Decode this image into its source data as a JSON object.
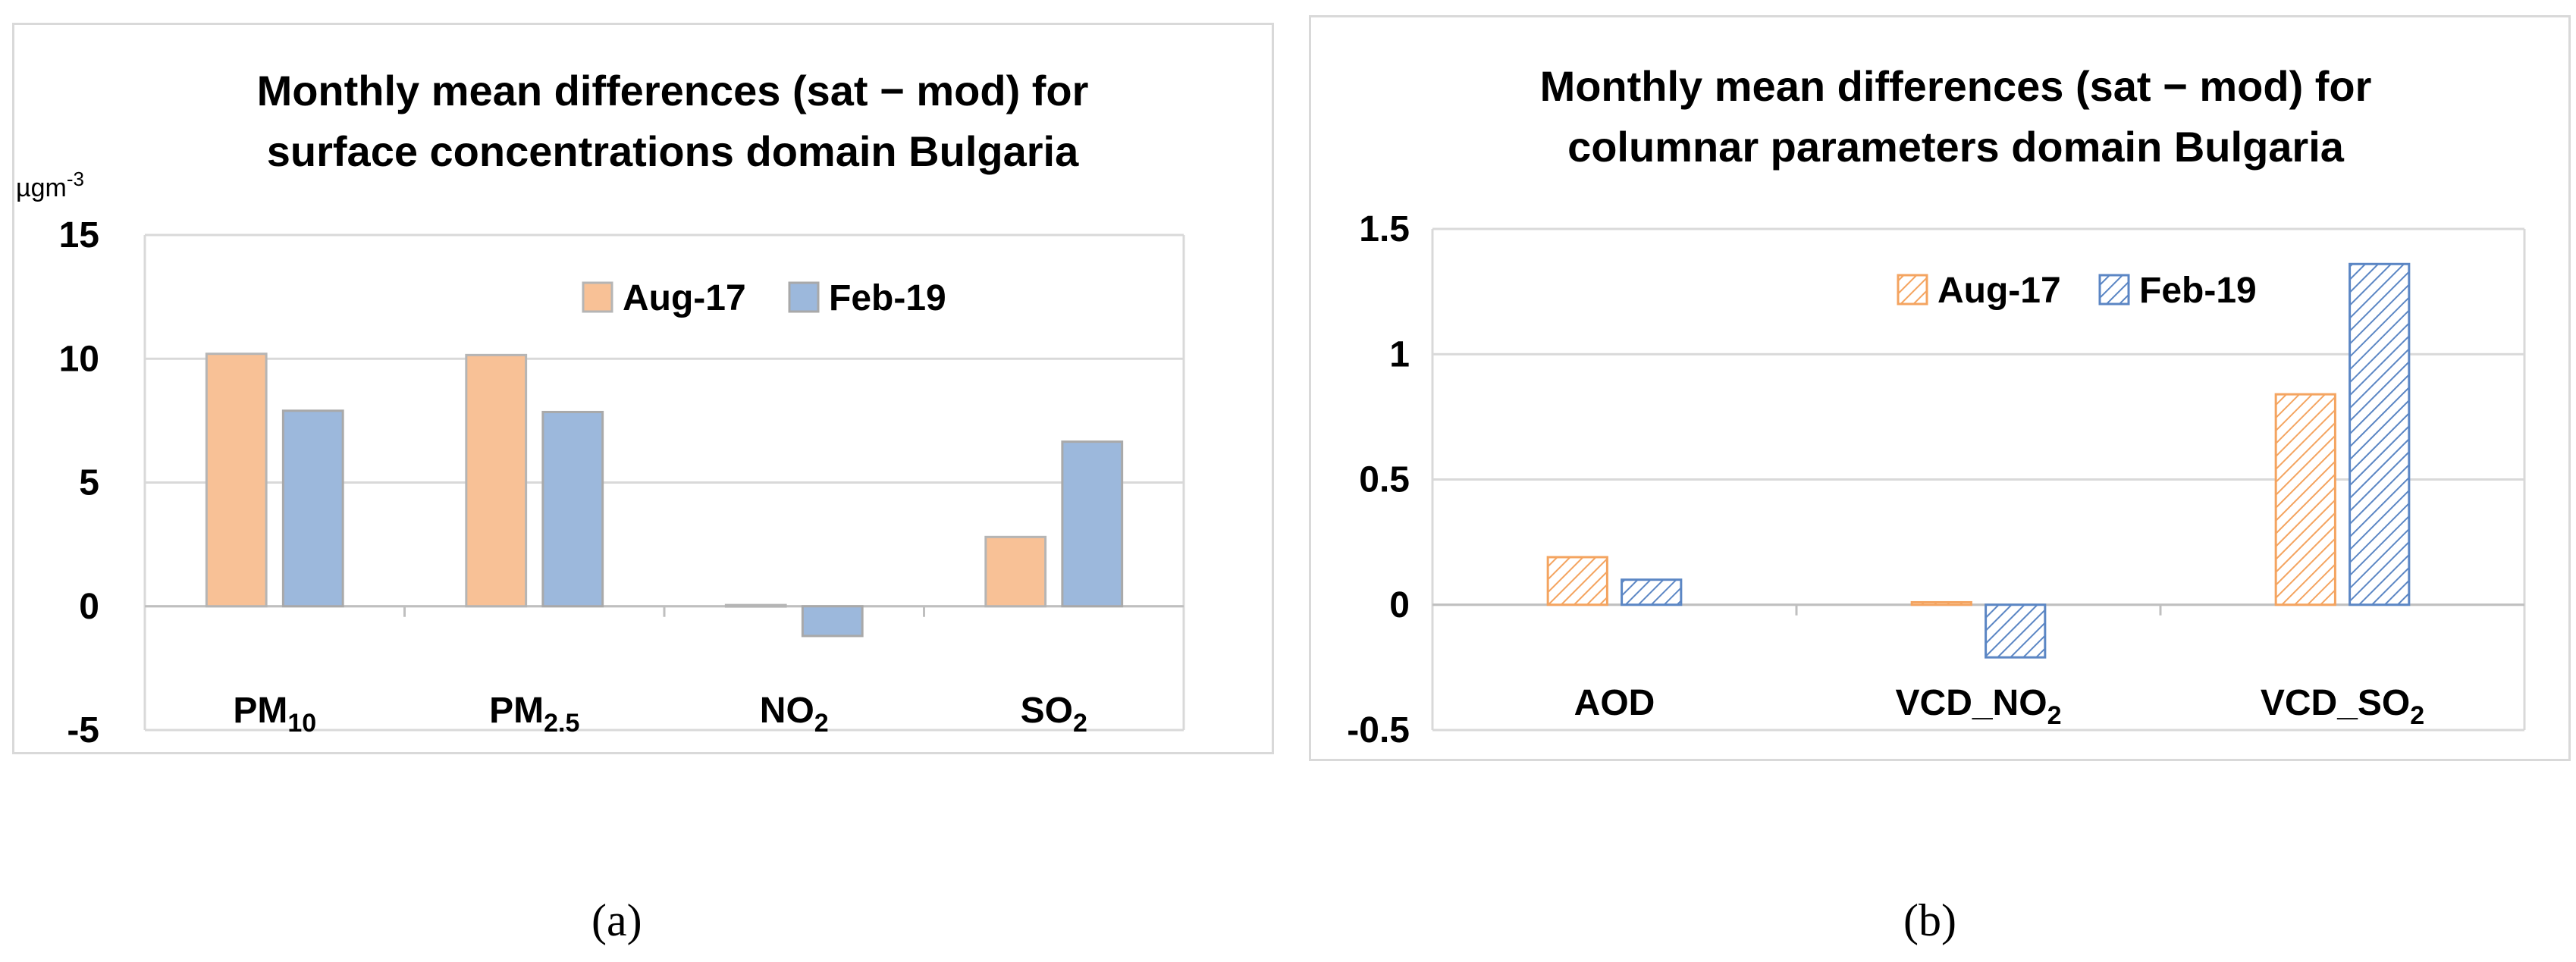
{
  "chart_data": [
    {
      "type": "bar",
      "panel": "(a)",
      "title_lines": [
        "Monthly mean differences (sat − mod) for",
        "surface concentrations domain Bulgaria"
      ],
      "unit": {
        "base": "µgm",
        "sup": "-3"
      },
      "categories": [
        {
          "base": "PM",
          "sub": "10"
        },
        {
          "base": "PM",
          "sub": "2.5"
        },
        {
          "base": "NO",
          "sub": "2"
        },
        {
          "base": "SO",
          "sub": "2"
        }
      ],
      "series": [
        {
          "name": "Aug-17",
          "values": [
            10.2,
            10.15,
            0.05,
            2.8
          ],
          "color": "#f8c196",
          "stroke": "#b5b5b5",
          "pattern": "solid"
        },
        {
          "name": "Feb-19",
          "values": [
            7.9,
            7.85,
            -1.2,
            6.65
          ],
          "color": "#9cb8dc",
          "stroke": "#a9a9a9",
          "pattern": "solid"
        }
      ],
      "ylim": [
        -5,
        15
      ],
      "yticks": [
        -5,
        0,
        5,
        10,
        15
      ],
      "ytick_labels": [
        "-5",
        "0",
        "5",
        "10",
        "15"
      ],
      "grid": true,
      "legend": "top-right"
    },
    {
      "type": "bar",
      "panel": "(b)",
      "title_lines": [
        "Monthly mean differences (sat − mod) for",
        "columnar parameters domain Bulgaria"
      ],
      "categories": [
        {
          "base": "AOD",
          "sub": ""
        },
        {
          "base": "VCD_NO",
          "sub": "2"
        },
        {
          "base": "VCD_SO",
          "sub": "2"
        }
      ],
      "series": [
        {
          "name": "Aug-17",
          "values": [
            0.19,
            0.01,
            0.84
          ],
          "color": "#f4a460",
          "stroke": "#f4a460",
          "pattern": "hatched"
        },
        {
          "name": "Feb-19",
          "values": [
            0.1,
            -0.21,
            1.36
          ],
          "color": "#5b86c4",
          "stroke": "#5b86c4",
          "pattern": "hatched"
        }
      ],
      "ylim": [
        -0.5,
        1.5
      ],
      "yticks": [
        -0.5,
        0,
        0.5,
        1,
        1.5
      ],
      "ytick_labels": [
        "-0.5",
        "0",
        "0.5",
        "1",
        "1.5"
      ],
      "grid": true,
      "legend": "top-right"
    }
  ]
}
